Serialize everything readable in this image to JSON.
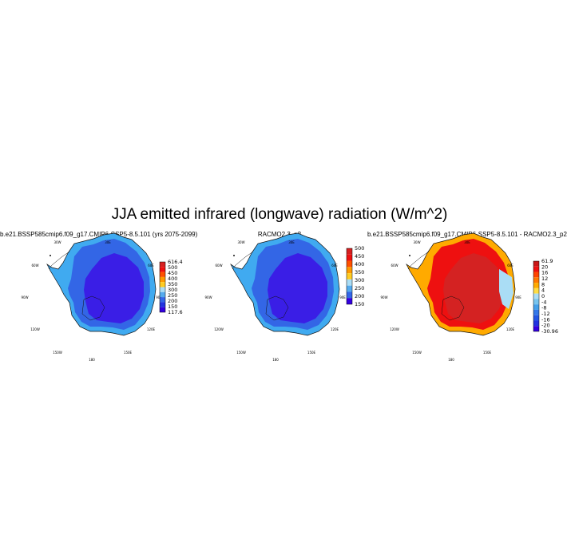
{
  "title": "JJA emitted infrared (longwave) radiation (W/m^2)",
  "chart_data": [
    {
      "type": "heatmap",
      "title": "b.e21.BSSP585cmip6.f09_g17.CMIP6-SSP5-8.5.101 (yrs 2075-2099)",
      "lon_labels": [
        "30W",
        "30E",
        "60W",
        "60E",
        "90W",
        "90E",
        "120W",
        "120E",
        "150W",
        "150E",
        "180"
      ],
      "colorbar": {
        "labels": [
          "616.4",
          "500",
          "450",
          "400",
          "350",
          "300",
          "250",
          "200",
          "150",
          "117.6"
        ],
        "colors": [
          "#d62020",
          "#ee1010",
          "#ff5000",
          "#ff9900",
          "#ffcc22",
          "#aaddf5",
          "#55aaee",
          "#3366e8",
          "#2233e0",
          "#3300e0"
        ]
      },
      "fill": {
        "coast": "#40aaf0",
        "mid": "#3366e6",
        "interior": "#3a1ee6"
      }
    },
    {
      "type": "heatmap",
      "title": "RACMO2.3_p2",
      "lon_labels": [
        "30W",
        "30E",
        "60W",
        "60E",
        "90W",
        "90E",
        "120W",
        "120E",
        "150W",
        "150E",
        "180"
      ],
      "colorbar": {
        "labels": [
          "500",
          "450",
          "400",
          "350",
          "300",
          "250",
          "200",
          "150"
        ],
        "colors": [
          "#d62020",
          "#ee1010",
          "#ff5000",
          "#ff9900",
          "#ffcc22",
          "#aaddf5",
          "#55aaee",
          "#3366e8",
          "#3300e0"
        ]
      },
      "fill": {
        "coast": "#40aaf0",
        "mid": "#3366e6",
        "interior": "#3a1ee6"
      }
    },
    {
      "type": "heatmap",
      "title": "b.e21.BSSP585cmip6.f09_g17.CMIP6-SSP5-8.5.101 - RACMO2.3_p2",
      "lon_labels": [
        "30W",
        "30E",
        "60W",
        "60E",
        "90W",
        "90E",
        "120W",
        "120E",
        "150W",
        "150E",
        "180"
      ],
      "colorbar": {
        "labels": [
          "61.9",
          "20",
          "16",
          "12",
          "8",
          "4",
          "0",
          "-4",
          "-8",
          "-12",
          "-16",
          "-20",
          "-30.96"
        ],
        "colors": [
          "#c81818",
          "#ee1010",
          "#ff4400",
          "#ff7700",
          "#ffaa00",
          "#ffdd44",
          "#aaddf5",
          "#77c4ee",
          "#44a0ea",
          "#3377e8",
          "#2255e4",
          "#2233e0",
          "#3300e0"
        ]
      },
      "fill": {
        "coast": "#ffaa00",
        "mid": "#ee1010",
        "interior": "#d42222",
        "east": "#aaddf5"
      }
    }
  ]
}
